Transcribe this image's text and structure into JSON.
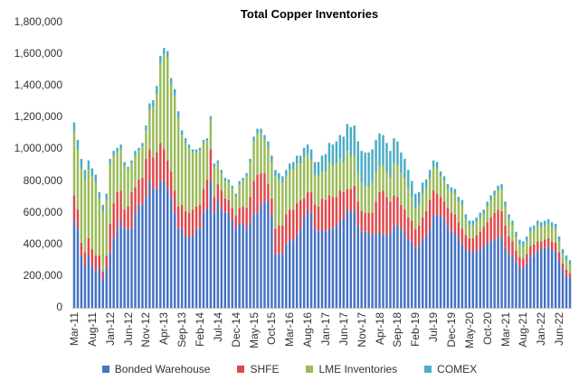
{
  "chart_data": {
    "type": "bar",
    "stacked": true,
    "title": "Total Copper Inventories",
    "xlabel": "",
    "ylabel": "",
    "ylim": [
      0,
      1800000
    ],
    "yticks": [
      "0",
      "200,000",
      "400,000",
      "600,000",
      "800,000",
      "1,000,000",
      "1,200,000",
      "1,400,000",
      "1,600,000",
      "1,800,000"
    ],
    "xtick_labels": [
      "Mar-11",
      "Aug-11",
      "Jan-12",
      "Jun-12",
      "Nov-12",
      "Apr-13",
      "Sep-13",
      "Feb-14",
      "Jul-14",
      "Dec-14",
      "May-15",
      "Oct-15",
      "Mar-16",
      "Aug-16",
      "Jan-17",
      "Jun-17",
      "Nov-17",
      "Apr-18",
      "Sep-18",
      "Feb-19",
      "Jul-19",
      "Dec-19",
      "May-20",
      "Oct-20",
      "Mar-21",
      "Aug-21",
      "Jan-22",
      "Jun-22"
    ],
    "x_start": "Mar-11",
    "x_end": "Sep-22",
    "frequency": "monthly",
    "grid": false,
    "legend_position": "bottom",
    "series": [
      {
        "name": "Bonded Warehouse",
        "color": "#4472C4",
        "values_thousand_t": [
          550,
          500,
          330,
          270,
          330,
          270,
          230,
          250,
          180,
          250,
          350,
          440,
          500,
          550,
          500,
          500,
          500,
          600,
          650,
          650,
          700,
          800,
          750,
          750,
          800,
          800,
          750,
          700,
          600,
          500,
          500,
          450,
          450,
          450,
          500,
          500,
          600,
          630,
          800,
          600,
          680,
          620,
          600,
          600,
          550,
          500,
          530,
          530,
          500,
          540,
          600,
          600,
          650,
          670,
          680,
          580,
          340,
          340,
          340,
          400,
          430,
          420,
          460,
          500,
          570,
          620,
          600,
          500,
          480,
          490,
          480,
          500,
          500,
          520,
          550,
          570,
          620,
          610,
          610,
          520,
          480,
          480,
          470,
          460,
          470,
          480,
          460,
          460,
          470,
          520,
          520,
          500,
          470,
          430,
          420,
          380,
          390,
          430,
          460,
          500,
          580,
          590,
          580,
          560,
          520,
          480,
          470,
          440,
          400,
          370,
          360,
          350,
          360,
          370,
          390,
          410,
          420,
          430,
          440,
          450,
          380,
          340,
          330,
          290,
          260,
          250,
          280,
          320,
          340,
          360,
          370,
          380,
          380,
          370,
          350,
          300,
          240,
          200,
          190
        ]
      },
      {
        "name": "SHFE",
        "color": "#E0474C",
        "values_thousand_t": [
          160,
          120,
          80,
          80,
          110,
          100,
          100,
          80,
          50,
          80,
          180,
          220,
          230,
          190,
          120,
          140,
          230,
          160,
          160,
          170,
          240,
          200,
          200,
          230,
          240,
          200,
          180,
          160,
          140,
          140,
          150,
          160,
          150,
          170,
          140,
          150,
          150,
          180,
          200,
          100,
          100,
          120,
          90,
          80,
          80,
          80,
          100,
          110,
          130,
          160,
          200,
          240,
          200,
          180,
          100,
          110,
          160,
          180,
          180,
          190,
          190,
          200,
          200,
          180,
          120,
          110,
          130,
          150,
          160,
          200,
          200,
          210,
          200,
          180,
          190,
          160,
          130,
          140,
          160,
          150,
          130,
          120,
          130,
          140,
          200,
          250,
          280,
          240,
          200,
          190,
          180,
          150,
          150,
          140,
          130,
          120,
          130,
          140,
          150,
          180,
          160,
          130,
          120,
          110,
          110,
          120,
          120,
          100,
          100,
          90,
          80,
          90,
          100,
          110,
          120,
          130,
          150,
          170,
          180,
          160,
          140,
          110,
          90,
          70,
          60,
          60,
          60,
          70,
          60,
          60,
          50,
          50,
          60,
          50,
          60,
          50,
          40,
          40,
          30
        ]
      },
      {
        "name": "LME Inventories",
        "color": "#9BBB59",
        "values_thousand_t": [
          400,
          380,
          470,
          460,
          430,
          460,
          460,
          360,
          380,
          350,
          380,
          300,
          250,
          260,
          270,
          230,
          180,
          200,
          180,
          200,
          180,
          250,
          320,
          370,
          500,
          600,
          650,
          550,
          600,
          560,
          440,
          430,
          410,
          360,
          340,
          340,
          290,
          240,
          190,
          190,
          130,
          110,
          110,
          110,
          120,
          120,
          150,
          160,
          200,
          220,
          250,
          260,
          250,
          210,
          230,
          230,
          330,
          290,
          270,
          240,
          250,
          250,
          250,
          230,
          260,
          240,
          200,
          190,
          190,
          170,
          180,
          210,
          200,
          210,
          200,
          190,
          240,
          210,
          190,
          180,
          180,
          170,
          170,
          200,
          190,
          170,
          160,
          160,
          150,
          200,
          200,
          200,
          200,
          190,
          150,
          130,
          130,
          150,
          140,
          140,
          150,
          160,
          130,
          130,
          120,
          130,
          130,
          130,
          150,
          100,
          80,
          80,
          80,
          90,
          80,
          100,
          110,
          110,
          120,
          140,
          120,
          110,
          100,
          90,
          80,
          80,
          80,
          90,
          90,
          100,
          90,
          90,
          90,
          90,
          90,
          70,
          60,
          60,
          50
        ]
      },
      {
        "name": "COMEX",
        "color": "#4BACC6",
        "values_thousand_t": [
          60,
          60,
          60,
          60,
          60,
          50,
          50,
          40,
          40,
          40,
          30,
          30,
          30,
          30,
          30,
          20,
          20,
          30,
          20,
          20,
          30,
          40,
          40,
          50,
          50,
          40,
          40,
          40,
          40,
          40,
          30,
          30,
          20,
          20,
          20,
          20,
          20,
          20,
          20,
          20,
          20,
          20,
          20,
          20,
          20,
          20,
          20,
          20,
          20,
          20,
          30,
          30,
          30,
          30,
          40,
          40,
          40,
          40,
          40,
          40,
          40,
          50,
          50,
          50,
          60,
          60,
          70,
          80,
          90,
          100,
          110,
          120,
          130,
          140,
          150,
          160,
          170,
          180,
          190,
          200,
          200,
          210,
          210,
          200,
          200,
          200,
          190,
          180,
          170,
          160,
          150,
          130,
          120,
          110,
          100,
          90,
          80,
          70,
          60,
          50,
          40,
          40,
          30,
          30,
          30,
          30,
          30,
          30,
          30,
          30,
          30,
          30,
          30,
          30,
          30,
          30,
          30,
          30,
          30,
          30,
          30,
          30,
          30,
          30,
          30,
          30,
          30,
          30,
          30,
          30,
          30,
          30,
          30,
          30,
          30,
          30,
          30,
          30,
          30
        ]
      }
    ]
  },
  "legend": {
    "items": [
      {
        "label": "Bonded Warehouse",
        "color": "#4472C4"
      },
      {
        "label": "SHFE",
        "color": "#E0474C"
      },
      {
        "label": "LME Inventories",
        "color": "#9BBB59"
      },
      {
        "label": "COMEX",
        "color": "#4BACC6"
      }
    ]
  }
}
